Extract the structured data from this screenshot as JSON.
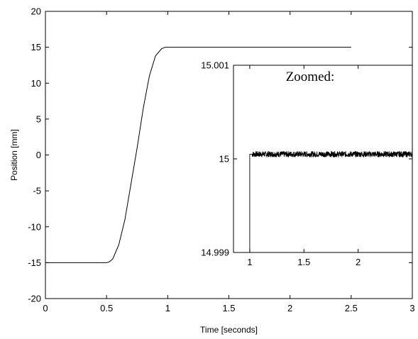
{
  "chart_data": [
    {
      "type": "line",
      "title": "",
      "xlabel": "Time [seconds]",
      "ylabel": "Position [mm]",
      "xlim": [
        0,
        3
      ],
      "ylim": [
        -20,
        20
      ],
      "x_ticks": [
        "0",
        "0.5",
        "1",
        "1.5",
        "2",
        "2.5",
        "3"
      ],
      "y_ticks": [
        "-20",
        "-15",
        "-10",
        "-5",
        "0",
        "5",
        "10",
        "15",
        "20"
      ],
      "grid": false,
      "legend": "none",
      "line_color": "#000000",
      "series": [
        {
          "x": [
            0,
            0.5,
            0.52,
            0.55,
            0.6,
            0.65,
            0.7,
            0.75,
            0.8,
            0.85,
            0.9,
            0.95,
            0.98,
            1.0,
            2.5
          ],
          "y": [
            -15,
            -15,
            -14.9,
            -14.5,
            -12.5,
            -9,
            -4,
            1,
            6.5,
            11,
            13.8,
            14.8,
            15,
            15,
            15
          ]
        }
      ]
    },
    {
      "type": "line",
      "title": "Zoomed:",
      "xlabel": "",
      "ylabel": "",
      "xlim": [
        0.85,
        2.5
      ],
      "ylim": [
        14.999,
        15.001
      ],
      "x_ticks": [
        "1",
        "1.5",
        "2"
      ],
      "y_ticks": [
        "14.999",
        "15",
        "15.001"
      ],
      "grid": false,
      "legend": "none",
      "line_color": "#000000",
      "series": [
        {
          "x": [
            1.0,
            1.0,
            1.02,
            2.5
          ],
          "y": [
            14.999,
            15.00005,
            15.00005,
            15.00005
          ]
        }
      ],
      "noise_amplitude": 3e-05
    }
  ]
}
